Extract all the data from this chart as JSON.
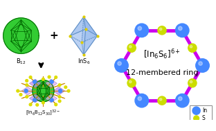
{
  "bg_color": "#ffffff",
  "left_panel": {
    "icosahedron_label": "B$_{12}$",
    "octahedron_label": "InS$_{6}$",
    "cluster_label": "[In$_{6}$B$_{12}$S$_{30}$]$^{32-}$",
    "plus_sign": "+",
    "arrow_color": "#111111"
  },
  "right_panel": {
    "title_line1": "[In$_6$S$_6$]$^{6+}$",
    "title_line2": "12-membered ring",
    "ring_color": "#cc00ee",
    "In_color": "#4488ff",
    "S_color": "#ccdd00",
    "legend_In_label": "In",
    "legend_S_label": "S"
  },
  "icosahedron_color_face": "#33cc33",
  "icosahedron_color_edge": "#006600",
  "octahedron_color_face": "#99bbee",
  "octahedron_color_edge": "#5588bb",
  "cluster_purple": "#bb88ee",
  "cluster_pink": "#ddaaee",
  "stick_color": "#cc8800",
  "In_color_cluster": "#4488ff",
  "S_color_cluster": "#dddd00"
}
